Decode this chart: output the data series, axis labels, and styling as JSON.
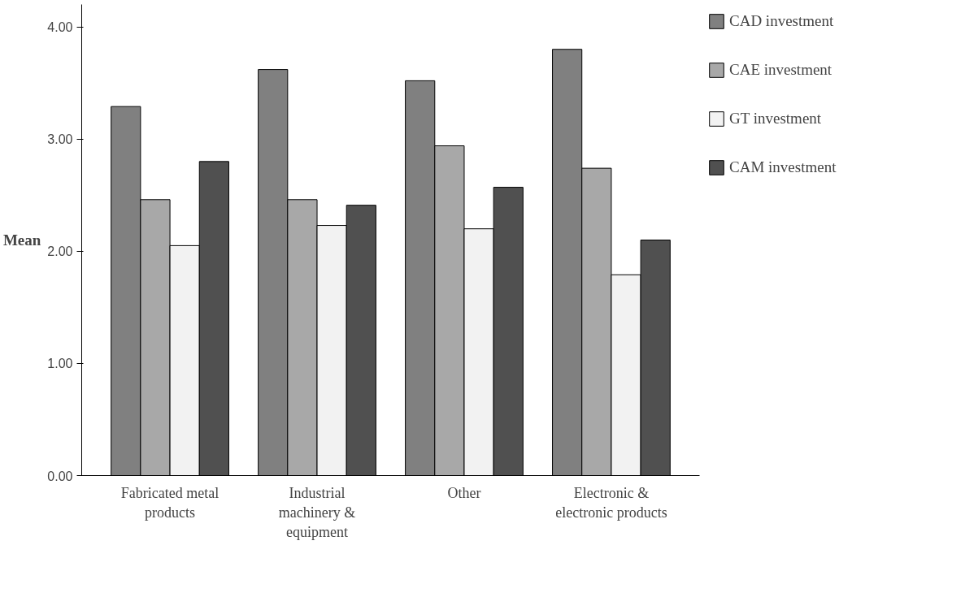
{
  "chart_data": {
    "type": "bar",
    "ylabel": "Mean",
    "categories": [
      "Fabricated metal products",
      "Industrial machinery & equipment",
      "Other",
      "Electronic & electronic products"
    ],
    "series": [
      {
        "name": "CAD investment",
        "color": "#808080",
        "values": [
          3.29,
          3.62,
          3.52,
          3.8
        ]
      },
      {
        "name": "CAE investment",
        "color": "#a8a8a8",
        "values": [
          2.46,
          2.46,
          2.94,
          2.74
        ]
      },
      {
        "name": "GT investment",
        "color": "#f2f2f2",
        "values": [
          2.05,
          2.23,
          2.2,
          1.79
        ]
      },
      {
        "name": "CAM investment",
        "color": "#505050",
        "values": [
          2.8,
          2.41,
          2.57,
          2.1
        ]
      }
    ],
    "ylim": [
      0,
      4.2
    ],
    "yticks": [
      {
        "value": 0,
        "label": "0.00"
      },
      {
        "value": 1,
        "label": "1.00"
      },
      {
        "value": 2,
        "label": "2.00"
      },
      {
        "value": 3,
        "label": "3.00"
      },
      {
        "value": 4,
        "label": "4.00"
      }
    ],
    "grid": false,
    "legend": "right"
  }
}
